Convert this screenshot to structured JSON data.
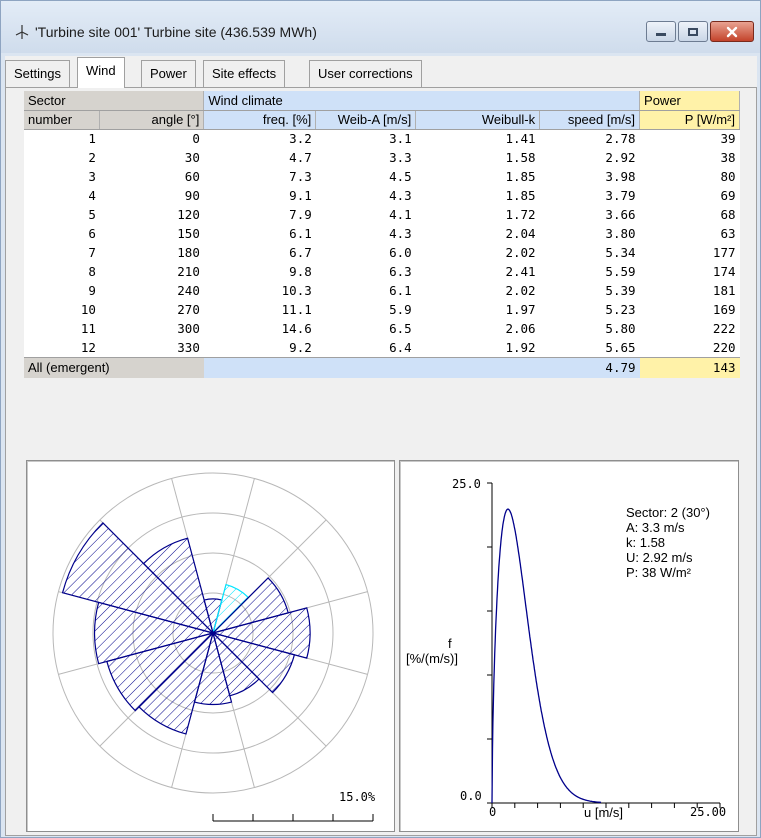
{
  "window": {
    "title": "'Turbine site 001' Turbine site (436.539 MWh)",
    "icon": "turbine-icon",
    "buttons": [
      "minimize-icon",
      "maximize-icon",
      "close-icon"
    ]
  },
  "tabs": [
    {
      "label": "Settings",
      "active": false
    },
    {
      "label": "Wind",
      "active": true
    },
    {
      "label": "Power",
      "active": false
    },
    {
      "label": "Site effects",
      "active": false
    },
    {
      "label": "User corrections",
      "active": false
    }
  ],
  "table": {
    "group_headers": {
      "sector": "Sector",
      "wind_climate": "Wind climate",
      "power": "Power"
    },
    "columns": [
      "number",
      "angle [°]",
      "freq. [%]",
      "Weib-A [m/s]",
      "Weibull-k",
      "speed [m/s]",
      "P [W/m²]"
    ],
    "rows": [
      [
        "1",
        "0",
        "3.2",
        "3.1",
        "1.41",
        "2.78",
        "39"
      ],
      [
        "2",
        "30",
        "4.7",
        "3.3",
        "1.58",
        "2.92",
        "38"
      ],
      [
        "3",
        "60",
        "7.3",
        "4.5",
        "1.85",
        "3.98",
        "80"
      ],
      [
        "4",
        "90",
        "9.1",
        "4.3",
        "1.85",
        "3.79",
        "69"
      ],
      [
        "5",
        "120",
        "7.9",
        "4.1",
        "1.72",
        "3.66",
        "68"
      ],
      [
        "6",
        "150",
        "6.1",
        "4.3",
        "2.04",
        "3.80",
        "63"
      ],
      [
        "7",
        "180",
        "6.7",
        "6.0",
        "2.02",
        "5.34",
        "177"
      ],
      [
        "8",
        "210",
        "9.8",
        "6.3",
        "2.41",
        "5.59",
        "174"
      ],
      [
        "9",
        "240",
        "10.3",
        "6.1",
        "2.02",
        "5.39",
        "181"
      ],
      [
        "10",
        "270",
        "11.1",
        "5.9",
        "1.97",
        "5.23",
        "169"
      ],
      [
        "11",
        "300",
        "14.6",
        "6.5",
        "2.06",
        "5.80",
        "222"
      ],
      [
        "12",
        "330",
        "9.2",
        "6.4",
        "1.92",
        "5.65",
        "220"
      ]
    ],
    "summary": {
      "label": "All (emergent)",
      "speed": "4.79",
      "power": "143"
    }
  },
  "wind_rose": {
    "scale_label": "15.0%",
    "max_percent": 15.0,
    "selected_sector": 2,
    "ring_count": 4
  },
  "distribution": {
    "y_max_label": "25.0",
    "y_min_label": "0.0",
    "x_min_label": "0",
    "x_max_label": "25.00",
    "x_unit_label": "u [m/s]",
    "y_label_line1": "f",
    "y_label_line2": "[%/(m/s)]",
    "y_max": 25.0,
    "x_max": 25.0,
    "info": {
      "sector": "Sector: 2 (30°)",
      "a": "A: 3.3 m/s",
      "k": "k: 1.58",
      "u": "U: 2.92 m/s",
      "p": "P: 38 W/m²"
    }
  },
  "colors": {
    "curve": "#00008b",
    "selected_sector": "#00e5ff",
    "grid": "#b8b8b8",
    "wind_climate_header": "#cfe1f8",
    "power_header": "#fff2a8"
  }
}
